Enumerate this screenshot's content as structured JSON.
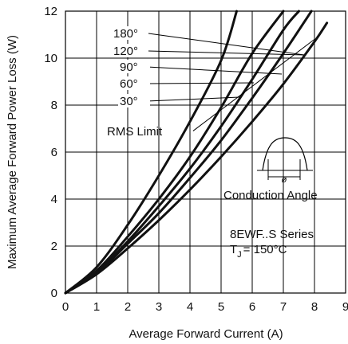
{
  "chart_data": {
    "type": "line",
    "title": "",
    "xlabel": "Average Forward Current (A)",
    "ylabel": "Maximum Average Forward Power Loss (W)",
    "xlim": [
      0,
      9
    ],
    "ylim": [
      0,
      12
    ],
    "x_ticks": [
      "0",
      "1",
      "2",
      "3",
      "4",
      "5",
      "6",
      "7",
      "8",
      "9"
    ],
    "y_ticks": [
      "0",
      "2",
      "4",
      "6",
      "8",
      "10",
      "12"
    ],
    "grid": true,
    "series": [
      {
        "name": "180°",
        "x": [
          0,
          1,
          2,
          3,
          4,
          5,
          6,
          7,
          8,
          8.4
        ],
        "y": [
          0,
          0.8,
          1.9,
          3.1,
          4.4,
          5.8,
          7.3,
          8.9,
          10.7,
          11.5
        ]
      },
      {
        "name": "120°",
        "x": [
          0,
          1,
          2,
          3,
          4,
          5,
          6,
          7,
          7.9
        ],
        "y": [
          0,
          0.85,
          2.1,
          3.4,
          4.9,
          6.5,
          8.3,
          10.2,
          12
        ]
      },
      {
        "name": "90°",
        "x": [
          0,
          1,
          2,
          3,
          4,
          5,
          6,
          7,
          7.5
        ],
        "y": [
          0,
          0.9,
          2.2,
          3.7,
          5.3,
          7.1,
          9.1,
          11.2,
          12
        ]
      },
      {
        "name": "60°",
        "x": [
          0,
          1,
          2,
          3,
          4,
          5,
          6,
          7
        ],
        "y": [
          0,
          0.95,
          2.4,
          4.0,
          5.8,
          7.9,
          10.2,
          12
        ]
      },
      {
        "name": "30°",
        "x": [
          0,
          1,
          2,
          3,
          4,
          5,
          5.5
        ],
        "y": [
          0,
          1.1,
          2.9,
          5.0,
          7.3,
          9.9,
          12
        ]
      }
    ],
    "curve_labels": [
      "180°",
      "120°",
      "90°",
      "60°",
      "30°"
    ],
    "rms_limit": {
      "label": "RMS Limit",
      "x": [
        4.1,
        8.0
      ],
      "y": [
        6.9,
        10.8
      ]
    },
    "inset_label": "Conduction Angle",
    "inset_symbol": "ø",
    "series_note": "8EWF..S Series",
    "temp_label": {
      "prefix": "T",
      "sub": "J",
      "value": "= 150°C"
    }
  }
}
